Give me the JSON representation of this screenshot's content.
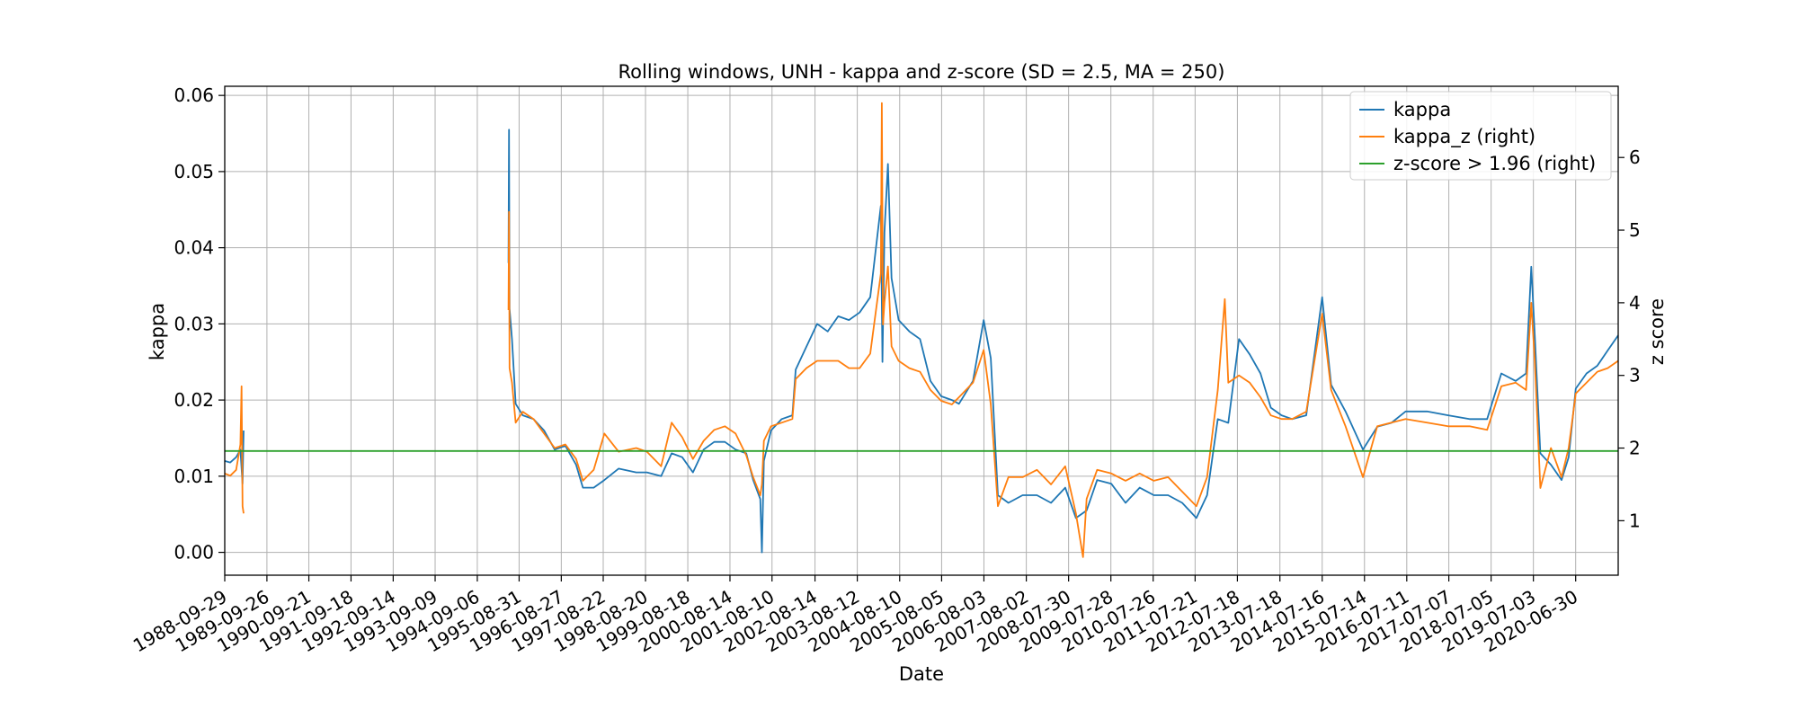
{
  "chart_data": {
    "type": "line",
    "title": "Rolling windows, UNH - kappa and z-score (SD = 2.5, MA = 250)",
    "xlabel": "Date",
    "ylabel": "kappa",
    "y2label": "z score",
    "xlim": [
      "1988-09-29",
      "2021-06-30"
    ],
    "ylim": [
      -0.003,
      0.0612
    ],
    "y2lim": [
      0.25,
      6.98
    ],
    "grid": true,
    "legend_position": "top-right",
    "x_ticks": [
      "1988-09-29",
      "1989-09-26",
      "1990-09-21",
      "1991-09-18",
      "1992-09-14",
      "1993-09-09",
      "1994-09-06",
      "1995-08-31",
      "1996-08-27",
      "1997-08-22",
      "1998-08-20",
      "1999-08-18",
      "2000-08-14",
      "2001-08-10",
      "2002-08-14",
      "2003-08-12",
      "2004-08-10",
      "2005-08-05",
      "2006-08-03",
      "2007-08-02",
      "2008-07-30",
      "2009-07-28",
      "2010-07-26",
      "2011-07-21",
      "2012-07-18",
      "2013-07-18",
      "2014-07-16",
      "2015-07-14",
      "2016-07-11",
      "2017-07-07",
      "2018-07-05",
      "2019-07-03",
      "2020-06-30"
    ],
    "y_ticks": [
      "0.00",
      "0.01",
      "0.02",
      "0.03",
      "0.04",
      "0.05",
      "0.06"
    ],
    "y2_ticks": [
      "1",
      "2",
      "3",
      "4",
      "5",
      "6"
    ],
    "series": [
      {
        "name": "kappa",
        "axis": "left",
        "color": "#1f77b4",
        "points": [
          [
            "1988-09-29",
            0.012
          ],
          [
            "1988-11-15",
            0.0118
          ],
          [
            "1989-01-05",
            0.0125
          ],
          [
            "1989-02-10",
            0.0135
          ],
          [
            "1989-03-01",
            0.009
          ],
          [
            "1989-03-10",
            0.016
          ],
          [
            "1989-03-20",
            null
          ],
          [
            "1995-06-01",
            0.038
          ],
          [
            "1995-06-05",
            0.0555
          ],
          [
            "1995-06-10",
            0.032
          ],
          [
            "1995-07-01",
            0.028
          ],
          [
            "1995-08-01",
            0.0195
          ],
          [
            "1995-10-01",
            0.018
          ],
          [
            "1996-01-01",
            0.0175
          ],
          [
            "1996-04-01",
            0.016
          ],
          [
            "1996-07-01",
            0.0135
          ],
          [
            "1996-10-01",
            0.014
          ],
          [
            "1997-01-01",
            0.0115
          ],
          [
            "1997-03-01",
            0.0085
          ],
          [
            "1997-06-01",
            0.0085
          ],
          [
            "1997-09-01",
            0.0095
          ],
          [
            "1998-01-01",
            0.011
          ],
          [
            "1998-06-01",
            0.0105
          ],
          [
            "1998-09-01",
            0.0105
          ],
          [
            "1999-01-01",
            0.01
          ],
          [
            "1999-04-01",
            0.013
          ],
          [
            "1999-07-01",
            0.0125
          ],
          [
            "1999-10-01",
            0.0105
          ],
          [
            "2000-01-01",
            0.0135
          ],
          [
            "2000-04-01",
            0.0145
          ],
          [
            "2000-07-01",
            0.0145
          ],
          [
            "2000-10-01",
            0.0135
          ],
          [
            "2001-01-01",
            0.013
          ],
          [
            "2001-03-01",
            0.0095
          ],
          [
            "2001-05-01",
            0.007
          ],
          [
            "2001-05-15",
            0.0
          ],
          [
            "2001-06-01",
            0.012
          ],
          [
            "2001-08-01",
            0.016
          ],
          [
            "2001-11-01",
            0.0175
          ],
          [
            "2002-02-01",
            0.018
          ],
          [
            "2002-03-01",
            0.024
          ],
          [
            "2002-06-01",
            0.027
          ],
          [
            "2002-09-01",
            0.03
          ],
          [
            "2002-12-01",
            0.029
          ],
          [
            "2003-03-01",
            0.031
          ],
          [
            "2003-06-01",
            0.0305
          ],
          [
            "2003-09-01",
            0.0315
          ],
          [
            "2003-12-01",
            0.0335
          ],
          [
            "2004-03-01",
            0.0455
          ],
          [
            "2004-03-15",
            0.025
          ],
          [
            "2004-04-01",
            0.042
          ],
          [
            "2004-05-01",
            0.051
          ],
          [
            "2004-06-01",
            0.036
          ],
          [
            "2004-08-01",
            0.0305
          ],
          [
            "2004-11-01",
            0.029
          ],
          [
            "2005-02-01",
            0.028
          ],
          [
            "2005-05-01",
            0.0225
          ],
          [
            "2005-08-01",
            0.0205
          ],
          [
            "2005-11-01",
            0.02
          ],
          [
            "2006-01-01",
            0.0195
          ],
          [
            "2006-05-01",
            0.0225
          ],
          [
            "2006-08-01",
            0.0305
          ],
          [
            "2006-10-01",
            0.0255
          ],
          [
            "2006-12-01",
            0.0075
          ],
          [
            "2007-03-01",
            0.0065
          ],
          [
            "2007-07-01",
            0.0075
          ],
          [
            "2007-11-01",
            0.0075
          ],
          [
            "2008-03-01",
            0.0065
          ],
          [
            "2008-07-01",
            0.0085
          ],
          [
            "2008-10-01",
            0.0045
          ],
          [
            "2009-01-01",
            0.0055
          ],
          [
            "2009-04-01",
            0.0095
          ],
          [
            "2009-08-01",
            0.009
          ],
          [
            "2009-12-01",
            0.0065
          ],
          [
            "2010-04-01",
            0.0085
          ],
          [
            "2010-08-01",
            0.0075
          ],
          [
            "2010-12-01",
            0.0075
          ],
          [
            "2011-04-01",
            0.0065
          ],
          [
            "2011-08-01",
            0.0045
          ],
          [
            "2011-11-01",
            0.0075
          ],
          [
            "2012-02-01",
            0.0175
          ],
          [
            "2012-05-01",
            0.017
          ],
          [
            "2012-08-01",
            0.028
          ],
          [
            "2012-11-01",
            0.026
          ],
          [
            "2013-02-01",
            0.0235
          ],
          [
            "2013-05-01",
            0.019
          ],
          [
            "2013-08-01",
            0.018
          ],
          [
            "2013-11-01",
            0.0175
          ],
          [
            "2014-03-01",
            0.018
          ],
          [
            "2014-07-16",
            0.0335
          ],
          [
            "2014-10-01",
            0.022
          ],
          [
            "2015-02-01",
            0.0185
          ],
          [
            "2015-07-01",
            0.0135
          ],
          [
            "2015-11-01",
            0.0165
          ],
          [
            "2016-03-01",
            0.017
          ],
          [
            "2016-07-01",
            0.0185
          ],
          [
            "2017-01-01",
            0.0185
          ],
          [
            "2017-07-01",
            0.018
          ],
          [
            "2018-01-01",
            0.0175
          ],
          [
            "2018-06-01",
            0.0175
          ],
          [
            "2018-10-01",
            0.0235
          ],
          [
            "2019-02-01",
            0.0225
          ],
          [
            "2019-05-01",
            0.0235
          ],
          [
            "2019-06-15",
            0.0375
          ],
          [
            "2019-07-15",
            0.0285
          ],
          [
            "2019-09-01",
            0.013
          ],
          [
            "2019-12-01",
            0.0115
          ],
          [
            "2020-03-01",
            0.0095
          ],
          [
            "2020-05-01",
            0.0125
          ],
          [
            "2020-07-01",
            0.0215
          ],
          [
            "2020-10-01",
            0.0235
          ],
          [
            "2021-01-01",
            0.0245
          ],
          [
            "2021-04-01",
            0.0265
          ],
          [
            "2021-06-30",
            0.0285
          ]
        ]
      },
      {
        "name": "kappa_z (right)",
        "axis": "right",
        "color": "#ff7f0e",
        "points": [
          [
            "1988-09-29",
            1.65
          ],
          [
            "1988-11-15",
            1.62
          ],
          [
            "1989-01-05",
            1.7
          ],
          [
            "1989-02-10",
            2.05
          ],
          [
            "1989-02-20",
            2.85
          ],
          [
            "1989-03-01",
            1.2
          ],
          [
            "1989-03-10",
            1.1
          ],
          [
            "1989-03-20",
            null
          ],
          [
            "1995-06-01",
            3.9
          ],
          [
            "1995-06-05",
            5.25
          ],
          [
            "1995-06-10",
            3.1
          ],
          [
            "1995-07-01",
            2.9
          ],
          [
            "1995-08-01",
            2.35
          ],
          [
            "1995-10-01",
            2.5
          ],
          [
            "1996-01-01",
            2.4
          ],
          [
            "1996-04-01",
            2.2
          ],
          [
            "1996-07-01",
            2.0
          ],
          [
            "1996-10-01",
            2.05
          ],
          [
            "1997-01-01",
            1.85
          ],
          [
            "1997-03-01",
            1.55
          ],
          [
            "1997-06-01",
            1.7
          ],
          [
            "1997-09-01",
            2.2
          ],
          [
            "1998-01-01",
            1.95
          ],
          [
            "1998-06-01",
            2.0
          ],
          [
            "1998-09-01",
            1.95
          ],
          [
            "1999-01-01",
            1.75
          ],
          [
            "1999-04-01",
            2.35
          ],
          [
            "1999-07-01",
            2.15
          ],
          [
            "1999-10-01",
            1.85
          ],
          [
            "2000-01-01",
            2.1
          ],
          [
            "2000-04-01",
            2.25
          ],
          [
            "2000-07-01",
            2.3
          ],
          [
            "2000-10-01",
            2.2
          ],
          [
            "2001-01-01",
            1.9
          ],
          [
            "2001-03-01",
            1.6
          ],
          [
            "2001-05-01",
            1.35
          ],
          [
            "2001-05-15",
            1.5
          ],
          [
            "2001-06-01",
            2.1
          ],
          [
            "2001-08-01",
            2.3
          ],
          [
            "2001-11-01",
            2.35
          ],
          [
            "2002-02-01",
            2.4
          ],
          [
            "2002-03-01",
            2.95
          ],
          [
            "2002-06-01",
            3.1
          ],
          [
            "2002-09-01",
            3.2
          ],
          [
            "2002-12-01",
            3.2
          ],
          [
            "2003-03-01",
            3.2
          ],
          [
            "2003-06-01",
            3.1
          ],
          [
            "2003-09-01",
            3.1
          ],
          [
            "2003-12-01",
            3.3
          ],
          [
            "2004-03-01",
            4.4
          ],
          [
            "2004-03-10",
            6.75
          ],
          [
            "2004-03-20",
            3.7
          ],
          [
            "2004-04-01",
            4.0
          ],
          [
            "2004-05-01",
            4.5
          ],
          [
            "2004-06-01",
            3.4
          ],
          [
            "2004-08-01",
            3.2
          ],
          [
            "2004-11-01",
            3.1
          ],
          [
            "2005-02-01",
            3.05
          ],
          [
            "2005-05-01",
            2.8
          ],
          [
            "2005-08-01",
            2.65
          ],
          [
            "2005-11-01",
            2.6
          ],
          [
            "2006-01-01",
            2.7
          ],
          [
            "2006-05-01",
            2.9
          ],
          [
            "2006-08-01",
            3.35
          ],
          [
            "2006-10-01",
            2.6
          ],
          [
            "2006-12-01",
            1.2
          ],
          [
            "2007-03-01",
            1.6
          ],
          [
            "2007-07-01",
            1.6
          ],
          [
            "2007-11-01",
            1.7
          ],
          [
            "2008-03-01",
            1.5
          ],
          [
            "2008-07-01",
            1.75
          ],
          [
            "2008-10-01",
            1.1
          ],
          [
            "2008-12-01",
            0.5
          ],
          [
            "2009-01-01",
            1.3
          ],
          [
            "2009-04-01",
            1.7
          ],
          [
            "2009-08-01",
            1.65
          ],
          [
            "2009-12-01",
            1.55
          ],
          [
            "2010-04-01",
            1.65
          ],
          [
            "2010-08-01",
            1.55
          ],
          [
            "2010-12-01",
            1.6
          ],
          [
            "2011-04-01",
            1.4
          ],
          [
            "2011-08-01",
            1.2
          ],
          [
            "2011-11-01",
            1.6
          ],
          [
            "2012-02-01",
            2.8
          ],
          [
            "2012-04-01",
            4.05
          ],
          [
            "2012-05-01",
            2.9
          ],
          [
            "2012-08-01",
            3.0
          ],
          [
            "2012-11-01",
            2.9
          ],
          [
            "2013-02-01",
            2.7
          ],
          [
            "2013-05-01",
            2.45
          ],
          [
            "2013-08-01",
            2.4
          ],
          [
            "2013-11-01",
            2.4
          ],
          [
            "2014-03-01",
            2.5
          ],
          [
            "2014-07-16",
            3.85
          ],
          [
            "2014-10-01",
            2.8
          ],
          [
            "2015-02-01",
            2.3
          ],
          [
            "2015-07-01",
            1.6
          ],
          [
            "2015-11-01",
            2.3
          ],
          [
            "2016-03-01",
            2.35
          ],
          [
            "2016-07-01",
            2.4
          ],
          [
            "2017-01-01",
            2.35
          ],
          [
            "2017-07-01",
            2.3
          ],
          [
            "2018-01-01",
            2.3
          ],
          [
            "2018-06-01",
            2.25
          ],
          [
            "2018-10-01",
            2.85
          ],
          [
            "2019-02-01",
            2.9
          ],
          [
            "2019-05-01",
            2.8
          ],
          [
            "2019-06-15",
            4.0
          ],
          [
            "2019-07-15",
            3.2
          ],
          [
            "2019-09-01",
            1.45
          ],
          [
            "2019-12-01",
            2.0
          ],
          [
            "2020-03-01",
            1.6
          ],
          [
            "2020-05-01",
            2.0
          ],
          [
            "2020-07-01",
            2.75
          ],
          [
            "2020-10-01",
            2.9
          ],
          [
            "2021-01-01",
            3.05
          ],
          [
            "2021-04-01",
            3.1
          ],
          [
            "2021-06-30",
            3.2
          ]
        ]
      },
      {
        "name": "z-score > 1.96 (right)",
        "axis": "right",
        "color": "#2ca02c",
        "points": [
          [
            "1988-09-29",
            1.96
          ],
          [
            "2021-06-30",
            1.96
          ]
        ]
      }
    ]
  }
}
